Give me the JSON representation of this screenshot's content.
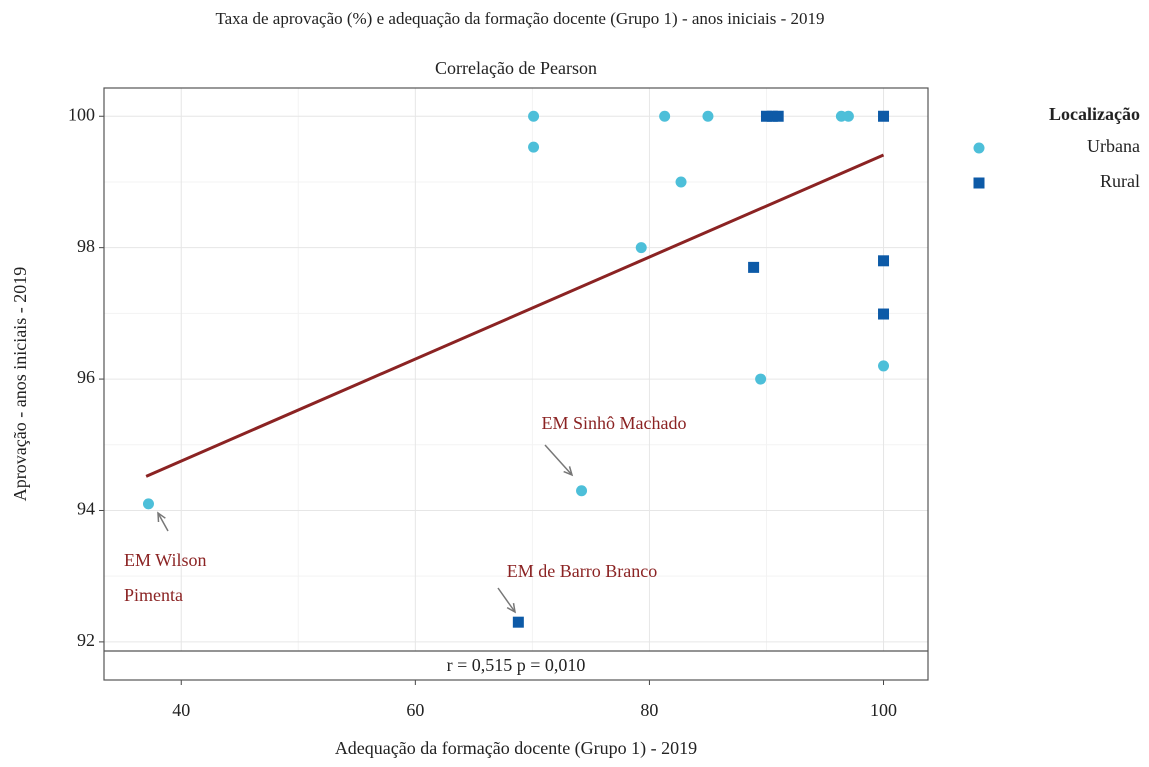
{
  "chart_data": {
    "type": "scatter",
    "title": "Taxa de aprovação (%) e adequação da formação docente (Grupo 1) - anos iniciais - 2019",
    "subtitle": "Correlação de Pearson",
    "x_label": "Adequação da formação docente (Grupo 1) - 2019",
    "y_label": "Aprovação - anos iniciais - 2019",
    "legend_title": "Localização",
    "series": [
      {
        "name": "Urbana",
        "color": "#4dbfd9",
        "marker": "circle",
        "x": [
          70.1,
          70.1,
          81.3,
          85.0,
          96.4,
          97.0,
          82.7,
          79.3,
          89.5,
          100,
          74.2,
          37.2
        ],
        "values": [
          100,
          99.53,
          100,
          100,
          100,
          100,
          99.0,
          98.0,
          96.0,
          96.2,
          94.3,
          94.1
        ]
      },
      {
        "name": "Rural",
        "color": "#0d5aa7",
        "marker": "square",
        "x": [
          90.0,
          90.5,
          91.0,
          100,
          88.9,
          100,
          100,
          68.8
        ],
        "values": [
          100,
          100,
          100,
          100,
          97.7,
          97.8,
          96.99,
          92.3
        ]
      }
    ],
    "trend": {
      "color": "#8b2323",
      "x": [
        37,
        100
      ],
      "values": [
        94.52,
        99.41
      ]
    },
    "stat_label": "r = 0,515  p = 0,010",
    "annotations": [
      {
        "lines": [
          "EM Sinhô Machado"
        ]
      },
      {
        "lines": [
          "EM Wilson",
          "Pimenta"
        ]
      },
      {
        "lines": [
          "EM de Barro Branco"
        ]
      }
    ],
    "xlim": [
      33.4,
      103.8
    ],
    "xticks": [
      40,
      60,
      80,
      100
    ],
    "x_minor_ticks": [
      50,
      70,
      90
    ],
    "ylim": [
      91.42,
      100.43
    ],
    "yticks": [
      92,
      94,
      96,
      98,
      100
    ],
    "y_minor_ticks": [
      93,
      95,
      97,
      99
    ],
    "grid": true
  }
}
